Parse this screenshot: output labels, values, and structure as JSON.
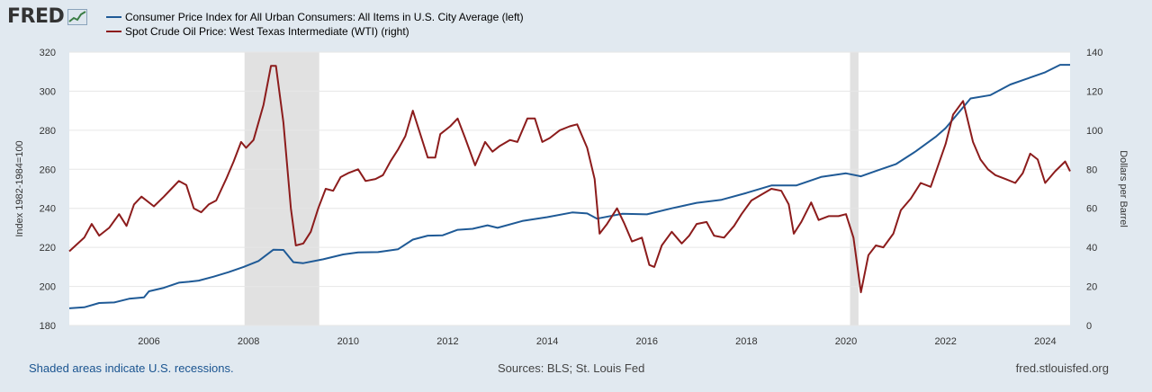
{
  "logo": {
    "text": "FRED"
  },
  "legend": [
    {
      "label": "Consumer Price Index for All Urban Consumers: All Items in U.S. City Average (left)",
      "color": "#1f5a96"
    },
    {
      "label": "Spot Crude Oil Price: West Texas Intermediate (WTI) (right)",
      "color": "#8c1c1c"
    }
  ],
  "footer": {
    "left": "Shaded areas indicate U.S. recessions.",
    "middle": "Sources: BLS; St. Louis Fed",
    "right": "fred.stlouisfed.org"
  },
  "chart_data": {
    "type": "line",
    "x_range": [
      2004.4,
      2024.5
    ],
    "x_ticks": [
      2006,
      2008,
      2010,
      2012,
      2014,
      2016,
      2018,
      2020,
      2022,
      2024
    ],
    "ylabel_left": "Index 1982-1984=100",
    "ylabel_right": "Dollars per Barrel",
    "ylim_left": [
      180,
      320
    ],
    "yticks_left": [
      180,
      200,
      220,
      240,
      260,
      280,
      300,
      320
    ],
    "ylim_right": [
      0,
      140
    ],
    "yticks_right": [
      0,
      20,
      40,
      60,
      80,
      100,
      120,
      140
    ],
    "recessions": [
      [
        2007.92,
        2009.42
      ],
      [
        2020.08,
        2020.25
      ]
    ],
    "series": [
      {
        "name": "Consumer Price Index for All Urban Consumers: All Items in U.S. City Average",
        "axis": "left",
        "color": "#1f5a96",
        "points": [
          [
            2004.4,
            188.8
          ],
          [
            2004.7,
            189.3
          ],
          [
            2005.0,
            191.5
          ],
          [
            2005.3,
            191.8
          ],
          [
            2005.6,
            193.7
          ],
          [
            2005.9,
            194.4
          ],
          [
            2006.0,
            197.5
          ],
          [
            2006.3,
            199.3
          ],
          [
            2006.6,
            201.9
          ],
          [
            2006.8,
            202.4
          ],
          [
            2007.0,
            203.0
          ],
          [
            2007.3,
            205.0
          ],
          [
            2007.6,
            207.3
          ],
          [
            2007.9,
            210.0
          ],
          [
            2008.2,
            213.0
          ],
          [
            2008.5,
            218.8
          ],
          [
            2008.7,
            218.7
          ],
          [
            2008.9,
            212.4
          ],
          [
            2009.1,
            211.9
          ],
          [
            2009.5,
            213.9
          ],
          [
            2009.9,
            216.4
          ],
          [
            2010.2,
            217.4
          ],
          [
            2010.6,
            217.6
          ],
          [
            2011.0,
            219.0
          ],
          [
            2011.3,
            224.0
          ],
          [
            2011.6,
            226.0
          ],
          [
            2011.9,
            226.2
          ],
          [
            2012.2,
            229.0
          ],
          [
            2012.5,
            229.5
          ],
          [
            2012.8,
            231.3
          ],
          [
            2013.0,
            230.0
          ],
          [
            2013.5,
            233.5
          ],
          [
            2014.0,
            235.5
          ],
          [
            2014.5,
            237.9
          ],
          [
            2014.8,
            237.4
          ],
          [
            2015.0,
            234.7
          ],
          [
            2015.5,
            237.2
          ],
          [
            2016.0,
            236.9
          ],
          [
            2016.5,
            240.0
          ],
          [
            2017.0,
            242.8
          ],
          [
            2017.5,
            244.4
          ],
          [
            2018.0,
            247.9
          ],
          [
            2018.5,
            251.7
          ],
          [
            2019.0,
            251.7
          ],
          [
            2019.5,
            256.1
          ],
          [
            2020.0,
            257.9
          ],
          [
            2020.3,
            256.4
          ],
          [
            2020.6,
            259.1
          ],
          [
            2021.0,
            262.6
          ],
          [
            2021.4,
            269.2
          ],
          [
            2021.8,
            276.6
          ],
          [
            2022.0,
            281.1
          ],
          [
            2022.5,
            296.3
          ],
          [
            2022.9,
            298.0
          ],
          [
            2023.3,
            303.4
          ],
          [
            2023.6,
            306.1
          ],
          [
            2024.0,
            309.7
          ],
          [
            2024.3,
            313.5
          ],
          [
            2024.5,
            313.5
          ]
        ]
      },
      {
        "name": "Spot Crude Oil Price: West Texas Intermediate (WTI)",
        "axis": "right",
        "color": "#8c1c1c",
        "points": [
          [
            2004.4,
            38
          ],
          [
            2004.7,
            45
          ],
          [
            2004.85,
            52
          ],
          [
            2005.0,
            46
          ],
          [
            2005.2,
            50
          ],
          [
            2005.4,
            57
          ],
          [
            2005.55,
            51
          ],
          [
            2005.7,
            62
          ],
          [
            2005.85,
            66
          ],
          [
            2006.1,
            61
          ],
          [
            2006.3,
            66
          ],
          [
            2006.45,
            70
          ],
          [
            2006.6,
            74
          ],
          [
            2006.75,
            72
          ],
          [
            2006.9,
            60
          ],
          [
            2007.05,
            58
          ],
          [
            2007.2,
            62
          ],
          [
            2007.35,
            64
          ],
          [
            2007.55,
            75
          ],
          [
            2007.7,
            84
          ],
          [
            2007.85,
            94
          ],
          [
            2007.95,
            91
          ],
          [
            2008.1,
            95
          ],
          [
            2008.3,
            113
          ],
          [
            2008.45,
            133
          ],
          [
            2008.55,
            133
          ],
          [
            2008.7,
            104
          ],
          [
            2008.85,
            60
          ],
          [
            2008.95,
            41
          ],
          [
            2009.1,
            42
          ],
          [
            2009.25,
            48
          ],
          [
            2009.4,
            60
          ],
          [
            2009.55,
            70
          ],
          [
            2009.7,
            69
          ],
          [
            2009.85,
            76
          ],
          [
            2010.0,
            78
          ],
          [
            2010.2,
            80
          ],
          [
            2010.35,
            74
          ],
          [
            2010.55,
            75
          ],
          [
            2010.7,
            77
          ],
          [
            2010.85,
            84
          ],
          [
            2011.0,
            90
          ],
          [
            2011.15,
            97
          ],
          [
            2011.3,
            110
          ],
          [
            2011.45,
            98
          ],
          [
            2011.6,
            86
          ],
          [
            2011.75,
            86
          ],
          [
            2011.85,
            98
          ],
          [
            2012.05,
            102
          ],
          [
            2012.2,
            106
          ],
          [
            2012.35,
            96
          ],
          [
            2012.55,
            82
          ],
          [
            2012.75,
            94
          ],
          [
            2012.9,
            89
          ],
          [
            2013.05,
            92
          ],
          [
            2013.25,
            95
          ],
          [
            2013.4,
            94
          ],
          [
            2013.6,
            106
          ],
          [
            2013.75,
            106
          ],
          [
            2013.9,
            94
          ],
          [
            2014.05,
            96
          ],
          [
            2014.25,
            100
          ],
          [
            2014.45,
            102
          ],
          [
            2014.6,
            103
          ],
          [
            2014.8,
            91
          ],
          [
            2014.95,
            75
          ],
          [
            2015.05,
            47
          ],
          [
            2015.2,
            52
          ],
          [
            2015.4,
            60
          ],
          [
            2015.55,
            52
          ],
          [
            2015.7,
            43
          ],
          [
            2015.9,
            45
          ],
          [
            2016.05,
            31
          ],
          [
            2016.15,
            30
          ],
          [
            2016.3,
            41
          ],
          [
            2016.5,
            48
          ],
          [
            2016.7,
            42
          ],
          [
            2016.85,
            46
          ],
          [
            2017.0,
            52
          ],
          [
            2017.2,
            53
          ],
          [
            2017.35,
            46
          ],
          [
            2017.55,
            45
          ],
          [
            2017.75,
            51
          ],
          [
            2017.9,
            57
          ],
          [
            2018.1,
            64
          ],
          [
            2018.3,
            67
          ],
          [
            2018.5,
            70
          ],
          [
            2018.7,
            69
          ],
          [
            2018.85,
            62
          ],
          [
            2018.95,
            47
          ],
          [
            2019.1,
            53
          ],
          [
            2019.3,
            63
          ],
          [
            2019.45,
            54
          ],
          [
            2019.65,
            56
          ],
          [
            2019.85,
            56
          ],
          [
            2020.0,
            57
          ],
          [
            2020.15,
            45
          ],
          [
            2020.3,
            17
          ],
          [
            2020.45,
            36
          ],
          [
            2020.6,
            41
          ],
          [
            2020.75,
            40
          ],
          [
            2020.95,
            47
          ],
          [
            2021.1,
            59
          ],
          [
            2021.3,
            65
          ],
          [
            2021.5,
            73
          ],
          [
            2021.7,
            71
          ],
          [
            2021.85,
            82
          ],
          [
            2022.0,
            93
          ],
          [
            2022.15,
            108
          ],
          [
            2022.35,
            115
          ],
          [
            2022.55,
            94
          ],
          [
            2022.7,
            85
          ],
          [
            2022.85,
            80
          ],
          [
            2023.0,
            77
          ],
          [
            2023.2,
            75
          ],
          [
            2023.4,
            73
          ],
          [
            2023.55,
            78
          ],
          [
            2023.7,
            88
          ],
          [
            2023.85,
            85
          ],
          [
            2024.0,
            73
          ],
          [
            2024.2,
            79
          ],
          [
            2024.4,
            84
          ],
          [
            2024.5,
            79
          ]
        ]
      }
    ]
  }
}
